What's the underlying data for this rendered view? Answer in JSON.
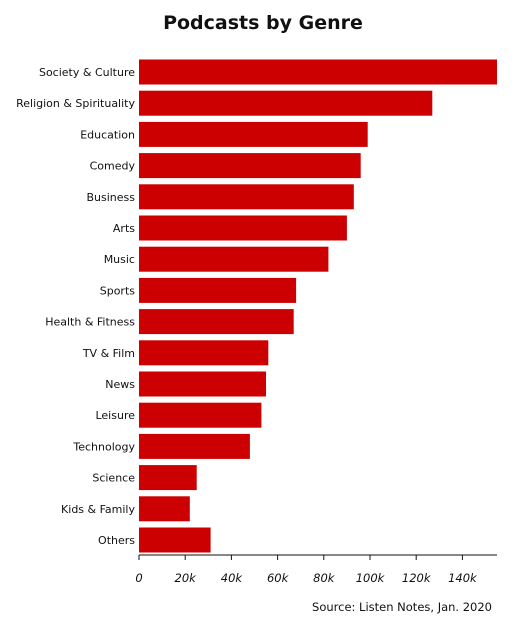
{
  "chart_data": {
    "type": "bar",
    "orientation": "horizontal",
    "title": "Podcasts by Genre",
    "categories": [
      "Society & Culture",
      "Religion & Spirituality",
      "Education",
      "Comedy",
      "Business",
      "Arts",
      "Music",
      "Sports",
      "Health & Fitness",
      "TV & Film",
      "News",
      "Leisure",
      "Technology",
      "Science",
      "Kids & Family",
      "Others"
    ],
    "values": [
      155000,
      127000,
      99000,
      96000,
      93000,
      90000,
      82000,
      68000,
      67000,
      56000,
      55000,
      53000,
      48000,
      25000,
      22000,
      31000
    ],
    "xlim": [
      0,
      155000
    ],
    "xticks": [
      0,
      20000,
      40000,
      60000,
      80000,
      100000,
      120000,
      140000
    ],
    "xtick_labels": [
      "0",
      "20k",
      "40k",
      "60k",
      "80k",
      "100k",
      "120k",
      "140k"
    ],
    "xlabel": "",
    "ylabel": "",
    "grid": false,
    "bar_color": "#cc0000"
  },
  "source": "Source: Listen Notes, Jan. 2020"
}
